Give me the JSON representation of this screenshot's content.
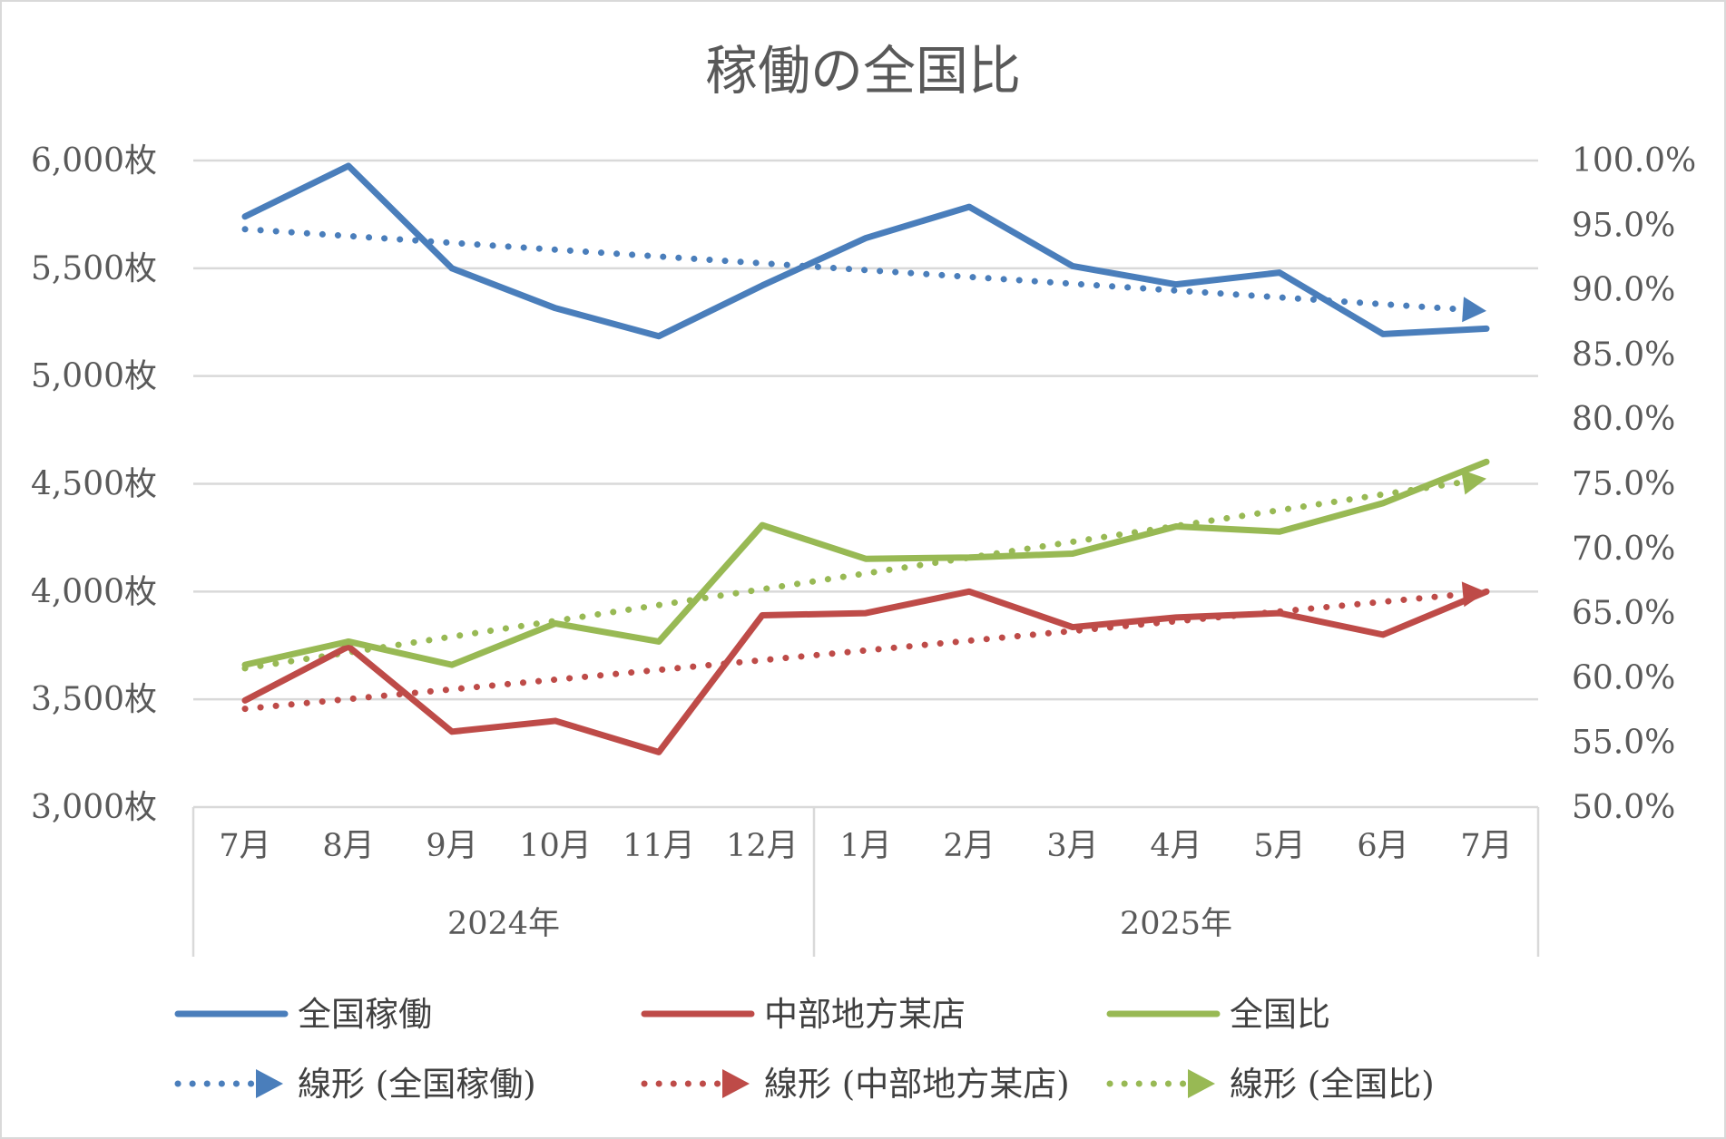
{
  "chart_data": {
    "type": "line",
    "title": "稼働の全国比",
    "categories": [
      "7月",
      "8月",
      "9月",
      "10月",
      "11月",
      "12月",
      "1月",
      "2月",
      "3月",
      "4月",
      "5月",
      "6月",
      "7月"
    ],
    "category_groups": [
      {
        "label": "2024年",
        "count": 6
      },
      {
        "label": "2025年",
        "count": 7
      }
    ],
    "y_left": {
      "min": 3000,
      "max": 6000,
      "step": 500,
      "ticks": [
        "3,000枚",
        "3,500枚",
        "4,000枚",
        "4,500枚",
        "5,000枚",
        "5,500枚",
        "6,000枚"
      ]
    },
    "y_right": {
      "min": 50,
      "max": 100,
      "step": 5,
      "ticks": [
        "50.0%",
        "55.0%",
        "60.0%",
        "65.0%",
        "70.0%",
        "75.0%",
        "80.0%",
        "85.0%",
        "90.0%",
        "95.0%",
        "100.0%"
      ]
    },
    "grid": true,
    "legend_position": "bottom",
    "series": [
      {
        "name": "全国稼働",
        "axis": "left",
        "color": "#4a7ebb",
        "values": [
          5740,
          5975,
          5500,
          5315,
          5185,
          5420,
          5640,
          5785,
          5510,
          5425,
          5480,
          5195,
          5220
        ]
      },
      {
        "name": "中部地方某店",
        "axis": "left",
        "color": "#be4b48",
        "values": [
          3495,
          3745,
          3350,
          3400,
          3255,
          3890,
          3900,
          4000,
          3835,
          3880,
          3900,
          3800,
          4000
        ]
      },
      {
        "name": "全国比",
        "axis": "right",
        "color": "#98b954",
        "values": [
          61.0,
          62.8,
          61.0,
          64.2,
          62.8,
          71.8,
          69.2,
          69.3,
          69.6,
          71.7,
          71.3,
          73.5,
          76.7
        ]
      }
    ],
    "trendlines": [
      {
        "name": "線形 (全国稼働)",
        "of": "全国稼働",
        "axis": "left",
        "color": "#4a7ebb"
      },
      {
        "name": "線形 (中部地方某店)",
        "of": "中部地方某店",
        "axis": "left",
        "color": "#be4b48"
      },
      {
        "name": "線形 (全国比)",
        "of": "全国比",
        "axis": "right",
        "color": "#98b954"
      }
    ]
  }
}
